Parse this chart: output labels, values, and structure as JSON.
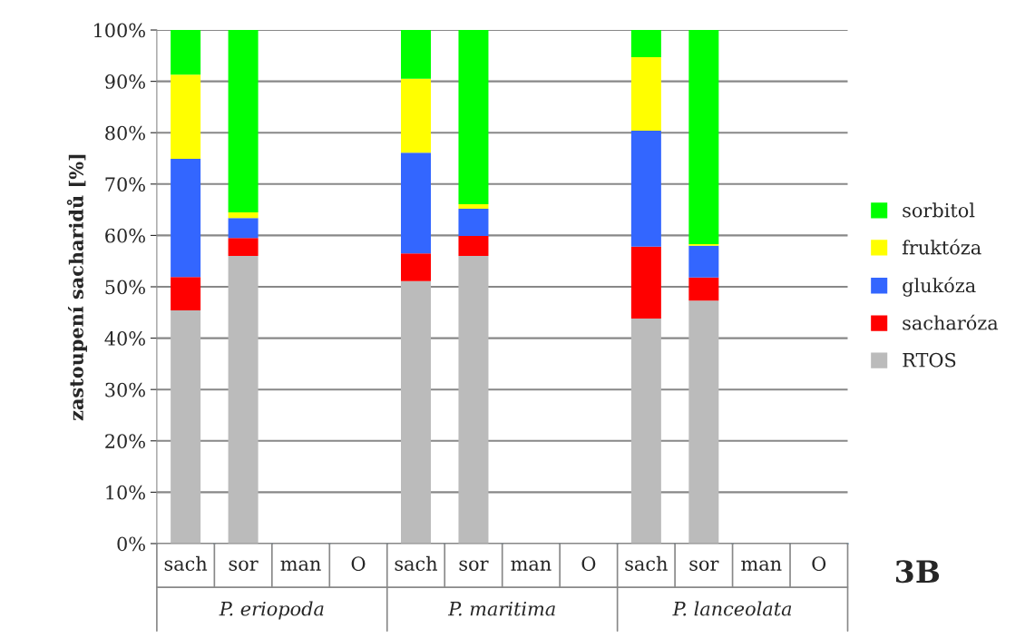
{
  "chart_data": {
    "type": "bar",
    "stacked": true,
    "ylabel": "zastoupení sacharidů [%]",
    "categories": [
      "sach",
      "sor",
      "man",
      "O",
      "sach",
      "sor",
      "man",
      "O",
      "sach",
      "sor",
      "man",
      "O"
    ],
    "series": [
      {
        "name": "RTOS",
        "color": "#bbbbbb",
        "values": [
          45.4,
          56.0,
          null,
          null,
          51.1,
          56.0,
          null,
          null,
          43.8,
          47.3,
          null,
          null
        ]
      },
      {
        "name": "sacharóza",
        "color": "#ff0000",
        "values": [
          6.5,
          3.5,
          null,
          null,
          5.4,
          3.9,
          null,
          null,
          14.0,
          4.5,
          null,
          null
        ]
      },
      {
        "name": "glukóza",
        "color": "#3366ff",
        "values": [
          23.0,
          3.9,
          null,
          null,
          19.6,
          5.3,
          null,
          null,
          22.6,
          6.2,
          null,
          null
        ]
      },
      {
        "name": "fruktóza",
        "color": "#ffff00",
        "values": [
          16.4,
          1.1,
          null,
          null,
          14.4,
          0.9,
          null,
          null,
          14.3,
          0.3,
          null,
          null
        ]
      },
      {
        "name": "sorbitol",
        "color": "#00ff00",
        "values": [
          8.7,
          35.5,
          null,
          null,
          9.5,
          33.9,
          null,
          null,
          5.3,
          41.7,
          null,
          null
        ]
      }
    ],
    "ylim": [
      0,
      100
    ],
    "yticks": [
      {
        "value": 0,
        "label": "0%"
      },
      {
        "value": 10,
        "label": "10%"
      },
      {
        "value": 20,
        "label": "20%"
      },
      {
        "value": 30,
        "label": "30%"
      },
      {
        "value": 40,
        "label": "40%"
      },
      {
        "value": 50,
        "label": "50%"
      },
      {
        "value": 60,
        "label": "60%"
      },
      {
        "value": 70,
        "label": "70%"
      },
      {
        "value": 80,
        "label": "80%"
      },
      {
        "value": 90,
        "label": "90%"
      },
      {
        "value": 100,
        "label": "100%"
      }
    ],
    "grid": "y",
    "legend": "right",
    "annotations": [
      "P. eriopoda",
      "P. maritima",
      "P. lanceolata",
      "3B"
    ]
  }
}
